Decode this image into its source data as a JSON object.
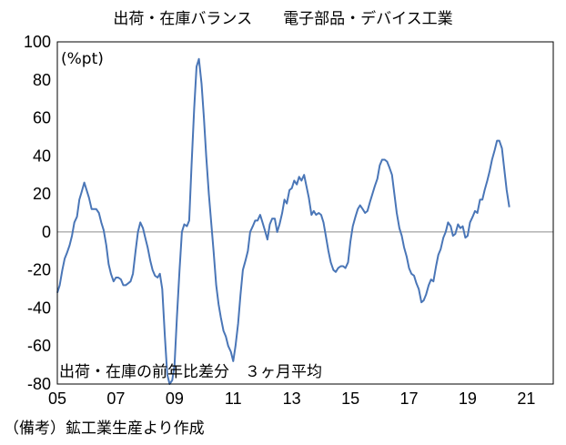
{
  "chart_data": {
    "type": "line",
    "title": "出荷・在庫バランス　　電子部品・デバイス工業",
    "unit_label": "(%pt)",
    "series_label": "出荷・在庫の前年比差分　３ヶ月平均",
    "note": "（備考）鉱工業生産より作成",
    "ylim": [
      -80,
      100
    ],
    "yticks": [
      100,
      80,
      60,
      40,
      20,
      0,
      -20,
      -40,
      -60,
      -80
    ],
    "xlim": [
      2005.0,
      2021.92
    ],
    "xticks": [
      {
        "label": "05",
        "x": 2005
      },
      {
        "label": "07",
        "x": 2007
      },
      {
        "label": "09",
        "x": 2009
      },
      {
        "label": "11",
        "x": 2011
      },
      {
        "label": "13",
        "x": 2013
      },
      {
        "label": "15",
        "x": 2015
      },
      {
        "label": "17",
        "x": 2017
      },
      {
        "label": "19",
        "x": 2019
      },
      {
        "label": "21",
        "x": 2021
      }
    ],
    "grid": false,
    "series_color": "#4a76b7",
    "zero_line_color": "#8c8c8c",
    "series": [
      {
        "points": [
          [
            2005.0,
            -32
          ],
          [
            2005.08,
            -28
          ],
          [
            2005.17,
            -20
          ],
          [
            2005.25,
            -14
          ],
          [
            2005.33,
            -11
          ],
          [
            2005.42,
            -7
          ],
          [
            2005.5,
            -2
          ],
          [
            2005.58,
            5
          ],
          [
            2005.67,
            8
          ],
          [
            2005.75,
            17
          ],
          [
            2005.83,
            21
          ],
          [
            2005.92,
            26
          ],
          [
            2006.0,
            22
          ],
          [
            2006.08,
            18
          ],
          [
            2006.17,
            12
          ],
          [
            2006.25,
            12
          ],
          [
            2006.33,
            12
          ],
          [
            2006.42,
            10
          ],
          [
            2006.5,
            5
          ],
          [
            2006.58,
            1
          ],
          [
            2006.67,
            -7
          ],
          [
            2006.75,
            -17
          ],
          [
            2006.83,
            -22
          ],
          [
            2006.92,
            -26
          ],
          [
            2007.0,
            -24
          ],
          [
            2007.08,
            -24
          ],
          [
            2007.17,
            -25
          ],
          [
            2007.25,
            -28
          ],
          [
            2007.33,
            -28
          ],
          [
            2007.42,
            -27
          ],
          [
            2007.5,
            -26
          ],
          [
            2007.58,
            -22
          ],
          [
            2007.67,
            -10
          ],
          [
            2007.75,
            0
          ],
          [
            2007.83,
            5
          ],
          [
            2007.92,
            2
          ],
          [
            2008.0,
            -3
          ],
          [
            2008.08,
            -8
          ],
          [
            2008.17,
            -15
          ],
          [
            2008.25,
            -20
          ],
          [
            2008.33,
            -23
          ],
          [
            2008.42,
            -24
          ],
          [
            2008.5,
            -22
          ],
          [
            2008.58,
            -30
          ],
          [
            2008.67,
            -55
          ],
          [
            2008.75,
            -75
          ],
          [
            2008.83,
            -80
          ],
          [
            2008.92,
            -78
          ],
          [
            2009.0,
            -70
          ],
          [
            2009.08,
            -45
          ],
          [
            2009.17,
            -20
          ],
          [
            2009.25,
            0
          ],
          [
            2009.33,
            4
          ],
          [
            2009.42,
            3
          ],
          [
            2009.5,
            6
          ],
          [
            2009.58,
            35
          ],
          [
            2009.67,
            65
          ],
          [
            2009.75,
            87
          ],
          [
            2009.83,
            91
          ],
          [
            2009.92,
            78
          ],
          [
            2010.0,
            60
          ],
          [
            2010.08,
            40
          ],
          [
            2010.17,
            20
          ],
          [
            2010.25,
            5
          ],
          [
            2010.33,
            -10
          ],
          [
            2010.42,
            -28
          ],
          [
            2010.5,
            -38
          ],
          [
            2010.58,
            -45
          ],
          [
            2010.67,
            -52
          ],
          [
            2010.75,
            -55
          ],
          [
            2010.83,
            -60
          ],
          [
            2010.92,
            -63
          ],
          [
            2011.0,
            -68
          ],
          [
            2011.08,
            -60
          ],
          [
            2011.17,
            -48
          ],
          [
            2011.25,
            -33
          ],
          [
            2011.33,
            -20
          ],
          [
            2011.42,
            -15
          ],
          [
            2011.5,
            -10
          ],
          [
            2011.58,
            0
          ],
          [
            2011.67,
            3
          ],
          [
            2011.75,
            6
          ],
          [
            2011.83,
            6
          ],
          [
            2011.92,
            9
          ],
          [
            2012.0,
            5
          ],
          [
            2012.08,
            1
          ],
          [
            2012.17,
            -4
          ],
          [
            2012.25,
            4
          ],
          [
            2012.33,
            7
          ],
          [
            2012.42,
            7
          ],
          [
            2012.5,
            0
          ],
          [
            2012.58,
            4
          ],
          [
            2012.67,
            10
          ],
          [
            2012.75,
            17
          ],
          [
            2012.83,
            15
          ],
          [
            2012.92,
            22
          ],
          [
            2013.0,
            23
          ],
          [
            2013.08,
            27
          ],
          [
            2013.17,
            25
          ],
          [
            2013.25,
            29
          ],
          [
            2013.33,
            27
          ],
          [
            2013.42,
            30
          ],
          [
            2013.5,
            24
          ],
          [
            2013.58,
            18
          ],
          [
            2013.67,
            9
          ],
          [
            2013.75,
            11
          ],
          [
            2013.83,
            9
          ],
          [
            2013.92,
            10
          ],
          [
            2014.0,
            9
          ],
          [
            2014.08,
            5
          ],
          [
            2014.17,
            -3
          ],
          [
            2014.25,
            -10
          ],
          [
            2014.33,
            -16
          ],
          [
            2014.42,
            -20
          ],
          [
            2014.5,
            -21
          ],
          [
            2014.58,
            -19
          ],
          [
            2014.67,
            -18
          ],
          [
            2014.75,
            -18
          ],
          [
            2014.83,
            -19
          ],
          [
            2014.92,
            -16
          ],
          [
            2015.0,
            -5
          ],
          [
            2015.08,
            3
          ],
          [
            2015.17,
            8
          ],
          [
            2015.25,
            12
          ],
          [
            2015.33,
            14
          ],
          [
            2015.42,
            12
          ],
          [
            2015.5,
            10
          ],
          [
            2015.58,
            11
          ],
          [
            2015.67,
            16
          ],
          [
            2015.75,
            20
          ],
          [
            2015.83,
            24
          ],
          [
            2015.92,
            28
          ],
          [
            2016.0,
            35
          ],
          [
            2016.08,
            38
          ],
          [
            2016.17,
            38
          ],
          [
            2016.25,
            37
          ],
          [
            2016.33,
            34
          ],
          [
            2016.42,
            30
          ],
          [
            2016.5,
            20
          ],
          [
            2016.58,
            10
          ],
          [
            2016.67,
            2
          ],
          [
            2016.75,
            -2
          ],
          [
            2016.83,
            -8
          ],
          [
            2016.92,
            -13
          ],
          [
            2017.0,
            -19
          ],
          [
            2017.08,
            -22
          ],
          [
            2017.17,
            -23
          ],
          [
            2017.25,
            -27
          ],
          [
            2017.33,
            -30
          ],
          [
            2017.42,
            -37
          ],
          [
            2017.5,
            -36
          ],
          [
            2017.58,
            -33
          ],
          [
            2017.67,
            -28
          ],
          [
            2017.75,
            -25
          ],
          [
            2017.83,
            -26
          ],
          [
            2017.92,
            -18
          ],
          [
            2018.0,
            -12
          ],
          [
            2018.08,
            -9
          ],
          [
            2018.17,
            -3
          ],
          [
            2018.25,
            0
          ],
          [
            2018.33,
            5
          ],
          [
            2018.42,
            3
          ],
          [
            2018.5,
            -2
          ],
          [
            2018.58,
            -1
          ],
          [
            2018.67,
            4
          ],
          [
            2018.75,
            2
          ],
          [
            2018.83,
            3
          ],
          [
            2018.92,
            -3
          ],
          [
            2019.0,
            -2
          ],
          [
            2019.08,
            5
          ],
          [
            2019.17,
            8
          ],
          [
            2019.25,
            11
          ],
          [
            2019.33,
            10
          ],
          [
            2019.42,
            17
          ],
          [
            2019.5,
            17
          ],
          [
            2019.58,
            22
          ],
          [
            2019.67,
            27
          ],
          [
            2019.75,
            32
          ],
          [
            2019.83,
            38
          ],
          [
            2019.92,
            43
          ],
          [
            2020.0,
            48
          ],
          [
            2020.08,
            48
          ],
          [
            2020.17,
            44
          ],
          [
            2020.25,
            33
          ],
          [
            2020.33,
            22
          ],
          [
            2020.42,
            13
          ]
        ]
      }
    ]
  }
}
